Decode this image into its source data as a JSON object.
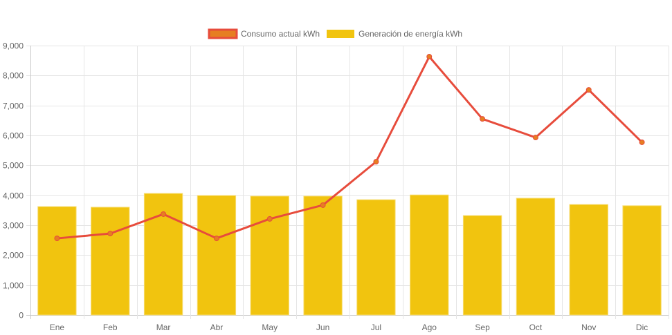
{
  "chart_data": {
    "type": "bar",
    "title": "",
    "xlabel": "",
    "ylabel": "",
    "categories": [
      "Ene",
      "Feb",
      "Mar",
      "Abr",
      "May",
      "Jun",
      "Jul",
      "Ago",
      "Sep",
      "Oct",
      "Nov",
      "Dic"
    ],
    "ylim": [
      0,
      9000
    ],
    "yticks": [
      0,
      1000,
      2000,
      3000,
      4000,
      5000,
      6000,
      7000,
      8000,
      9000
    ],
    "ytick_labels": [
      "0",
      "1,000",
      "2,000",
      "3,000",
      "4,000",
      "5,000",
      "6,000",
      "7,000",
      "8,000",
      "9,000"
    ],
    "grid": true,
    "legend_position": "top-center",
    "series": [
      {
        "name": "Consumo actual kWh",
        "type": "line",
        "color": "#e74c3c",
        "point_color": "#e67e22",
        "values": [
          2560,
          2720,
          3370,
          2560,
          3210,
          3670,
          5120,
          8630,
          6550,
          5930,
          7520,
          5770
        ]
      },
      {
        "name": "Generación de energía kWh",
        "type": "bar",
        "color": "#f1c40f",
        "values": [
          3620,
          3600,
          4060,
          3990,
          3970,
          3970,
          3850,
          4010,
          3320,
          3900,
          3690,
          3650
        ]
      }
    ]
  }
}
